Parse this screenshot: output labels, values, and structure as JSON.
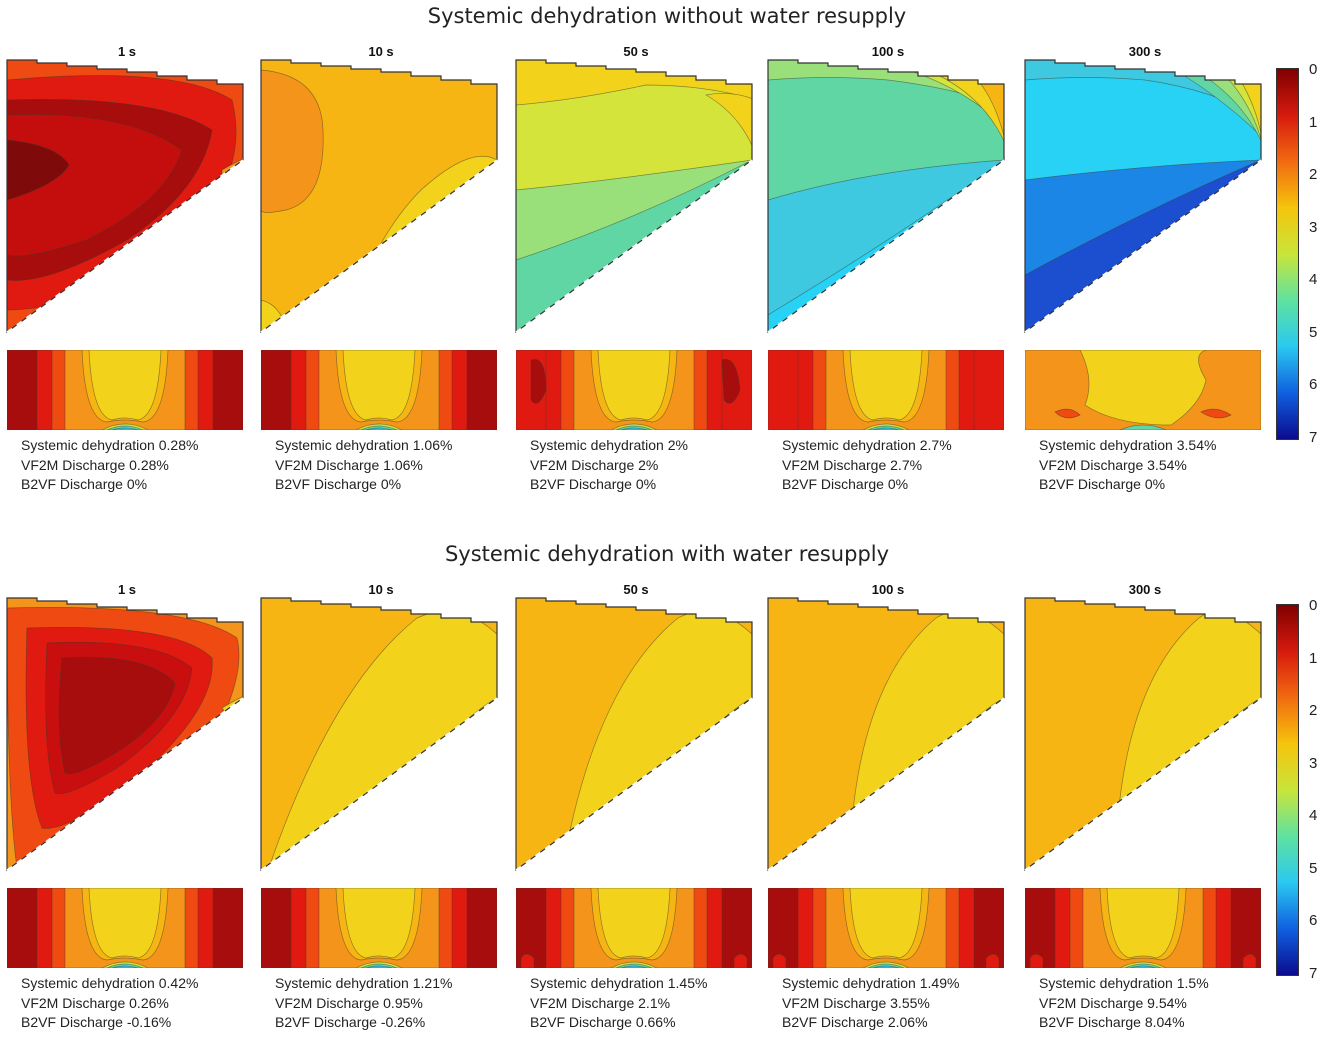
{
  "rows": [
    {
      "title": "Systemic dehydration without water resupply",
      "scheme": "without",
      "panels": [
        {
          "time": "1 s",
          "stats": [
            "Systemic dehydration 0.28%",
            "VF2M Discharge 0.28%",
            "B2VF Discharge 0%"
          ]
        },
        {
          "time": "10 s",
          "stats": [
            "Systemic dehydration 1.06%",
            "VF2M Discharge 1.06%",
            "B2VF Discharge 0%"
          ]
        },
        {
          "time": "50 s",
          "stats": [
            "Systemic dehydration 2%",
            "VF2M Discharge 2%",
            "B2VF Discharge 0%"
          ]
        },
        {
          "time": "100 s",
          "stats": [
            "Systemic dehydration 2.7%",
            "VF2M Discharge 2.7%",
            "B2VF Discharge 0%"
          ]
        },
        {
          "time": "300 s",
          "stats": [
            "Systemic dehydration 3.54%",
            "VF2M Discharge 3.54%",
            "B2VF Discharge 0%"
          ]
        }
      ]
    },
    {
      "title": "Systemic dehydration with water resupply",
      "scheme": "with",
      "panels": [
        {
          "time": "1 s",
          "stats": [
            "Systemic dehydration 0.42%",
            "VF2M Discharge 0.26%",
            "B2VF Discharge -0.16%"
          ]
        },
        {
          "time": "10 s",
          "stats": [
            "Systemic dehydration 1.21%",
            "VF2M Discharge 0.95%",
            "B2VF Discharge -0.26%"
          ]
        },
        {
          "time": "50 s",
          "stats": [
            "Systemic dehydration 1.45%",
            "VF2M Discharge 2.1%",
            "B2VF Discharge 0.66%"
          ]
        },
        {
          "time": "100 s",
          "stats": [
            "Systemic dehydration 1.49%",
            "VF2M Discharge 3.55%",
            "B2VF Discharge 2.06%"
          ]
        },
        {
          "time": "300 s",
          "stats": [
            "Systemic dehydration 1.5%",
            "VF2M Discharge 9.54%",
            "B2VF Discharge 8.04%"
          ]
        }
      ]
    }
  ],
  "colorbar": {
    "ticks": [
      "0",
      "1",
      "2",
      "3",
      "4",
      "5",
      "6",
      "7"
    ],
    "range": [
      0,
      7
    ],
    "colors": [
      "#7f0000",
      "#d61a0e",
      "#f26a10",
      "#f5c40c",
      "#c8e53a",
      "#5fe2a0",
      "#2ac9f0",
      "#1060e0",
      "#0b0b8f"
    ]
  },
  "palette": {
    "dark_red": "#a80d0d",
    "red": "#e01a10",
    "red_orange": "#ef4a12",
    "orange": "#f4941a",
    "amber": "#f7b514",
    "yellow": "#f2d21a",
    "yellow_green": "#d4e43a",
    "light_green": "#9ae07a",
    "green": "#5fd6a4",
    "aqua": "#3ec9e0",
    "cyan": "#28d2f4",
    "blue": "#1c86e6",
    "deep_blue": "#1a3fc0",
    "navy": "#0d1690"
  }
}
